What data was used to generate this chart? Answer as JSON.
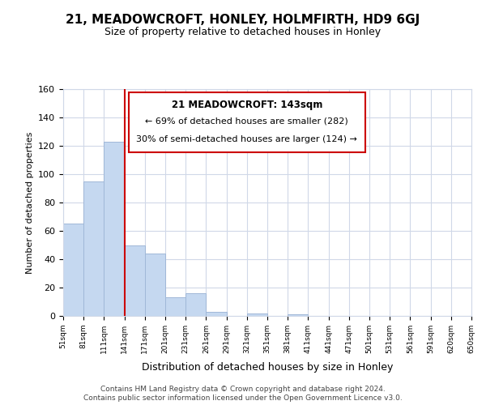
{
  "title": "21, MEADOWCROFT, HONLEY, HOLMFIRTH, HD9 6GJ",
  "subtitle": "Size of property relative to detached houses in Honley",
  "xlabel": "Distribution of detached houses by size in Honley",
  "ylabel": "Number of detached properties",
  "bar_values": [
    65,
    95,
    123,
    50,
    44,
    13,
    16,
    3,
    0,
    2,
    0,
    1,
    0,
    0,
    0,
    0,
    0,
    0,
    0,
    0
  ],
  "bar_labels": [
    "51sqm",
    "81sqm",
    "111sqm",
    "141sqm",
    "171sqm",
    "201sqm",
    "231sqm",
    "261sqm",
    "291sqm",
    "321sqm",
    "351sqm",
    "381sqm",
    "411sqm",
    "441sqm",
    "471sqm",
    "501sqm",
    "531sqm",
    "561sqm",
    "591sqm",
    "620sqm",
    "650sqm"
  ],
  "bar_color": "#c5d8f0",
  "bar_edge_color": "#a0b8d8",
  "vline_color": "#cc0000",
  "vline_bar_index": 3,
  "annotation_title": "21 MEADOWCROFT: 143sqm",
  "annotation_line1": "← 69% of detached houses are smaller (282)",
  "annotation_line2": "30% of semi-detached houses are larger (124) →",
  "annotation_box_color": "#ffffff",
  "annotation_box_edge": "#cc0000",
  "ylim": [
    0,
    160
  ],
  "yticks": [
    0,
    20,
    40,
    60,
    80,
    100,
    120,
    140,
    160
  ],
  "footer_line1": "Contains HM Land Registry data © Crown copyright and database right 2024.",
  "footer_line2": "Contains public sector information licensed under the Open Government Licence v3.0.",
  "background_color": "#ffffff",
  "grid_color": "#d0d8e8"
}
